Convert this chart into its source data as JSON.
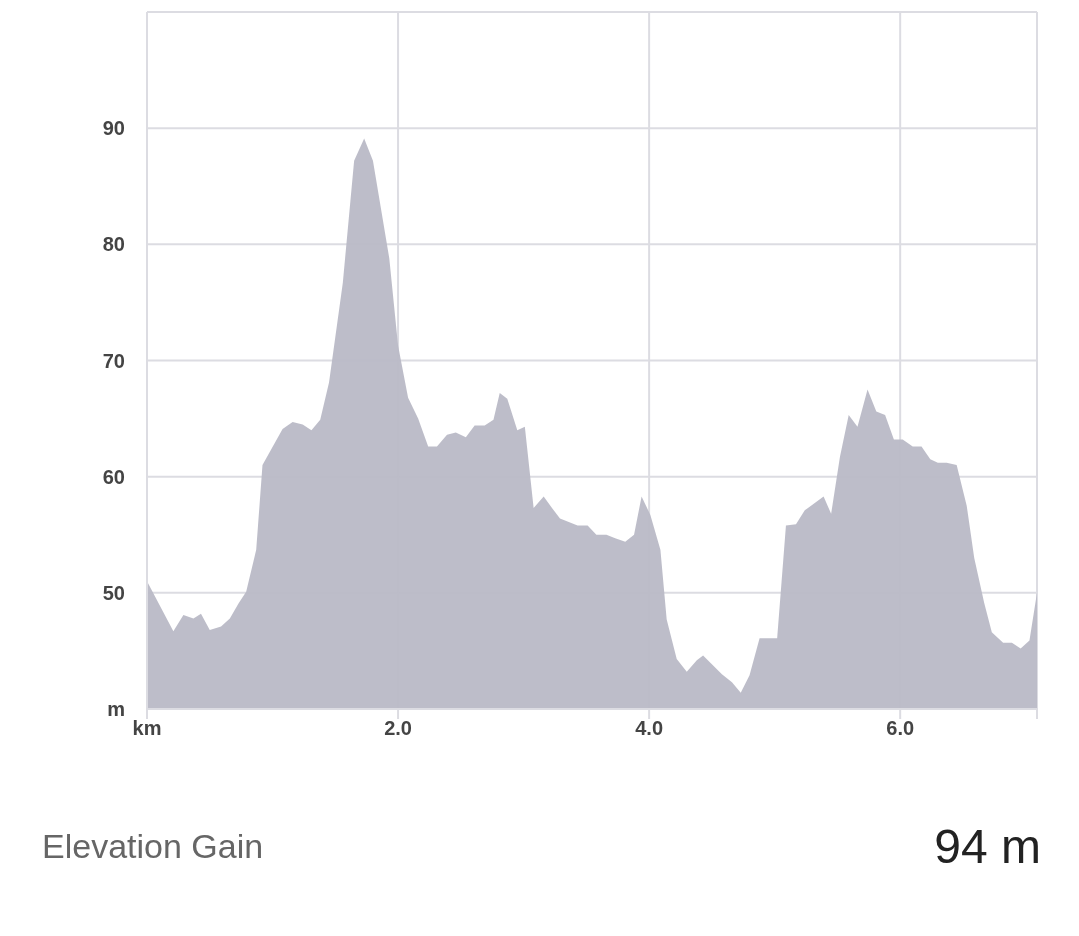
{
  "chart_data": {
    "type": "area",
    "x": [
      0,
      0.21,
      0.29,
      0.37,
      0.43,
      0.5,
      0.59,
      0.66,
      0.73,
      0.79,
      0.87,
      0.92,
      1.08,
      1.16,
      1.24,
      1.31,
      1.38,
      1.45,
      1.56,
      1.65,
      1.73,
      1.8,
      1.93,
      2.0,
      2.08,
      2.16,
      2.24,
      2.31,
      2.39,
      2.46,
      2.54,
      2.61,
      2.69,
      2.76,
      2.81,
      2.87,
      2.95,
      3.01,
      3.08,
      3.16,
      3.24,
      3.29,
      3.43,
      3.51,
      3.58,
      3.66,
      3.73,
      3.81,
      3.88,
      3.94,
      4.01,
      4.09,
      4.14,
      4.22,
      4.3,
      4.38,
      4.43,
      4.58,
      4.66,
      4.73,
      4.8,
      4.88,
      5.02,
      5.09,
      5.17,
      5.24,
      5.39,
      5.45,
      5.52,
      5.59,
      5.66,
      5.74,
      5.81,
      5.88,
      5.95,
      6.02,
      6.1,
      6.17,
      6.24,
      6.3,
      6.37,
      6.45,
      6.53,
      6.59,
      6.67,
      6.73,
      6.82,
      6.89,
      6.96,
      7.03,
      7.09
    ],
    "series": [
      {
        "color": "#b9b9c6",
        "values": [
          51,
          46.7,
          48.1,
          47.8,
          48.2,
          46.8,
          47.1,
          47.8,
          49.1,
          50.1,
          53.7,
          61,
          64.1,
          64.7,
          64.5,
          64,
          64.9,
          68.1,
          76.7,
          87.2,
          89.1,
          87.2,
          78.8,
          71.3,
          66.8,
          65,
          62.6,
          62.6,
          63.6,
          63.8,
          63.4,
          64.4,
          64.4,
          64.9,
          67.2,
          66.7,
          64,
          64.3,
          57.3,
          58.3,
          57.1,
          56.4,
          55.8,
          55.8,
          55,
          55,
          54.7,
          54.4,
          55,
          58.3,
          56.7,
          53.7,
          47.7,
          44.3,
          43.2,
          44.2,
          44.6,
          43,
          42.3,
          41.4,
          42.9,
          46.1,
          46.1,
          55.8,
          55.9,
          57.1,
          58.3,
          56.8,
          61.7,
          65.3,
          64.3,
          67.5,
          65.6,
          65.3,
          63.2,
          63.2,
          62.6,
          62.6,
          61.5,
          61.2,
          61.2,
          61,
          57.5,
          53,
          49.1,
          46.6,
          45.7,
          45.7,
          45.2,
          45.9,
          50
        ]
      }
    ],
    "xlim": [
      0,
      7.09
    ],
    "xticks": [
      {
        "value": 0,
        "label": "km"
      },
      {
        "value": 2,
        "label": "2.0"
      },
      {
        "value": 4,
        "label": "4.0"
      },
      {
        "value": 6,
        "label": "6.0"
      },
      {
        "value": 7.09,
        "label": null
      }
    ],
    "ylim": [
      40,
      100
    ],
    "yticks": [
      {
        "value": 40,
        "label": "m"
      },
      50,
      60,
      70,
      80,
      90,
      {
        "value": 100,
        "label": null
      }
    ],
    "grid": true,
    "annotations": [
      "Elevation Gain",
      "94 m"
    ]
  }
}
